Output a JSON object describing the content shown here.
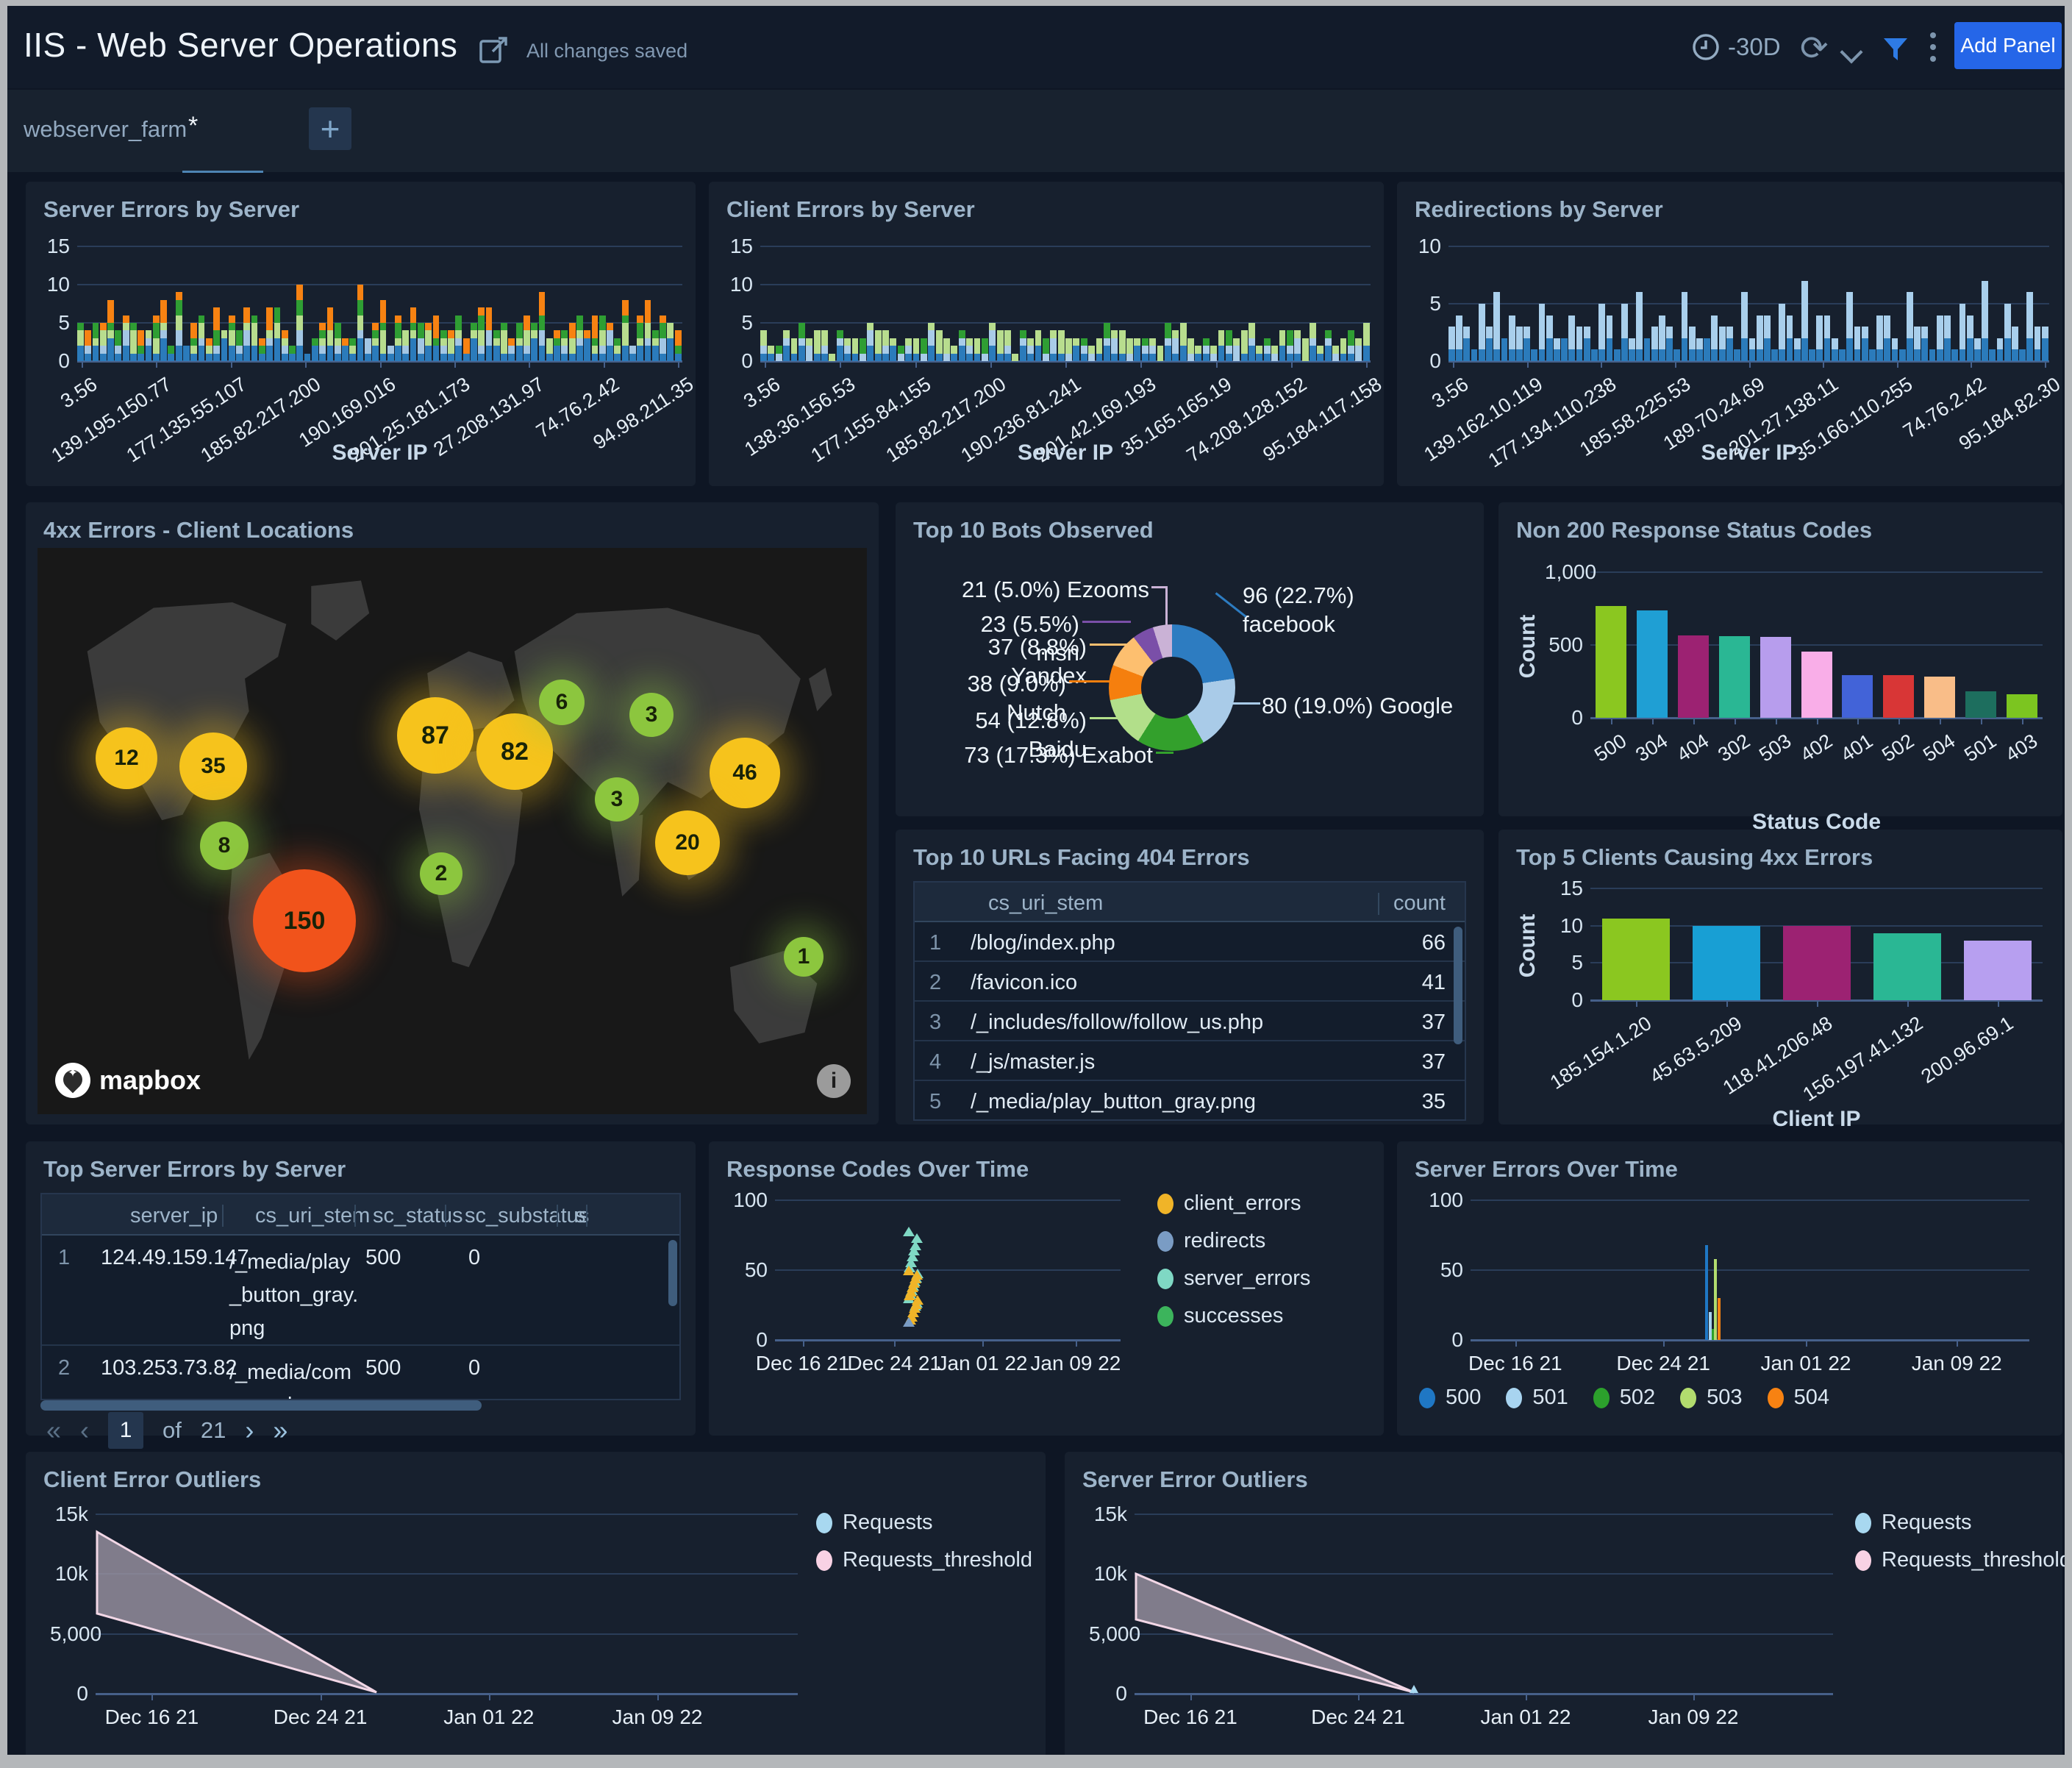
{
  "header": {
    "title": "IIS - Web Server Operations",
    "saved_status": "All changes saved",
    "time_range": "-30D",
    "add_panel_label": "Add Panel"
  },
  "filter": {
    "label": "webserver_farm",
    "value": "*",
    "add_button": "+"
  },
  "row1": [
    {
      "title": "Server Errors by Server",
      "xlabel": "Server IP",
      "ymax": 15,
      "yticks": [
        15,
        10,
        5,
        0
      ],
      "ytick_labels": [
        "15",
        "10",
        "5",
        "0"
      ],
      "xticks": [
        "3.56",
        "139.195.150.77",
        "177.135.55.107",
        "185.82.217.200",
        "190.169.016",
        "201.25.181.173",
        "27.208.131.97",
        "74.76.2.42",
        "94.98.211.35"
      ],
      "colors": [
        "#2b7bbb",
        "#a3c6e4",
        "#b8dd8e",
        "#2f9e33",
        "#f78212"
      ],
      "stacks": [
        "21213121121312212113212212311212121213121121312211213122112132121123112121222131",
        "01010120010102001010012001010200101001200101020010100120010102001010012001010200",
        "20121013012102012101201301210200121012013012102012101201301210201210120130121020",
        "10201201102012011020120110201201102012011020120110201201102012011020120110201201",
        "02013010201301020130102013010200130102013010201301020130010203010201301020130102"
      ]
    },
    {
      "title": "Client Errors by Server",
      "xlabel": "Server IP",
      "ymax": 15,
      "yticks": [
        15,
        10,
        5,
        0
      ],
      "ytick_labels": [
        "15",
        "10",
        "5",
        "0"
      ],
      "xticks": [
        "3.56",
        "138.36.156.53",
        "177.155.84.155",
        "185.82.217.200",
        "190.236.81.241",
        "201.42.169.193",
        "35.165.165.19",
        "74.208.128.152",
        "95.184.117.158"
      ],
      "colors": [
        "#2b7bbb",
        "#a9cce8",
        "#b8dd8e",
        "#2f9e33"
      ],
      "stacks": [
        "11021201102110211201102101211021102120110210121102110212011021012110211021201102",
        "10110120101101201011012010110120101101201011012010110120101101201011012010110120",
        "21012013210120132101201321012013210120132101201321012013210120132101201321012013",
        "00100200001002000010020000100200001002000010020000100200001002000010020000100200"
      ]
    },
    {
      "title": "Redirections by Server",
      "xlabel": "Server IP",
      "ymax": 10,
      "yticks": [
        10,
        5,
        0
      ],
      "ytick_labels": [
        "10",
        "5",
        "0"
      ],
      "xticks": [
        "3.56",
        "139.162.10.119",
        "177.134.110.238",
        "185.58.225.53",
        "189.70.24.69",
        "201.27.138.11",
        "35.166.110.255",
        "74.76.2.42",
        "95.184.82.30"
      ],
      "colors": [
        "#2b7bbb",
        "#a9cfec"
      ],
      "stacks": [
        "11211212112112121121121211211212112112121121121211211212112112121121121211211212",
        "23104150321042103210420315023104210321041320421503210421032104210320421501320421"
      ]
    }
  ],
  "map": {
    "title": "4xx Errors - Client Locations",
    "attribution": "mapbox",
    "info_icon": "i",
    "bubbles": [
      {
        "value": "12",
        "x": 0.107,
        "y": 0.371,
        "color": "#f6c31c",
        "size": 84
      },
      {
        "value": "35",
        "x": 0.212,
        "y": 0.386,
        "color": "#f6c31c",
        "size": 92
      },
      {
        "value": "8",
        "x": 0.225,
        "y": 0.526,
        "color": "#8cc63e",
        "size": 66
      },
      {
        "value": "150",
        "x": 0.322,
        "y": 0.658,
        "color": "#f1531b",
        "size": 140
      },
      {
        "value": "87",
        "x": 0.48,
        "y": 0.331,
        "color": "#f6c31c",
        "size": 104
      },
      {
        "value": "82",
        "x": 0.575,
        "y": 0.36,
        "color": "#f6c31c",
        "size": 104
      },
      {
        "value": "6",
        "x": 0.632,
        "y": 0.273,
        "color": "#8cc63e",
        "size": 62
      },
      {
        "value": "3",
        "x": 0.74,
        "y": 0.295,
        "color": "#8cc63e",
        "size": 60
      },
      {
        "value": "3",
        "x": 0.699,
        "y": 0.444,
        "color": "#8cc63e",
        "size": 60
      },
      {
        "value": "2",
        "x": 0.487,
        "y": 0.575,
        "color": "#8cc63e",
        "size": 58
      },
      {
        "value": "46",
        "x": 0.853,
        "y": 0.397,
        "color": "#f6c31c",
        "size": 96
      },
      {
        "value": "20",
        "x": 0.784,
        "y": 0.521,
        "color": "#f6c31c",
        "size": 88
      },
      {
        "value": "1",
        "x": 0.924,
        "y": 0.722,
        "color": "#8cc63e",
        "size": 54
      }
    ]
  },
  "bots": {
    "title": "Top 10 Bots Observed",
    "slices": [
      {
        "name": "facebook",
        "pct": 22.7,
        "count": 96,
        "color": "#2d7cc1"
      },
      {
        "name": "google",
        "pct": 19.0,
        "count": 80,
        "color": "#a9cbe8"
      },
      {
        "name": "exabot",
        "pct": 17.3,
        "count": 73,
        "color": "#33a02c"
      },
      {
        "name": "baidu",
        "pct": 12.8,
        "count": 54,
        "color": "#b2df8a"
      },
      {
        "name": "nutch",
        "pct": 9.0,
        "count": 38,
        "color": "#f57f0e"
      },
      {
        "name": "yandex",
        "pct": 8.8,
        "count": 37,
        "color": "#fdbf6f"
      },
      {
        "name": "msn",
        "pct": 5.5,
        "count": 23,
        "color": "#7a4fa8"
      },
      {
        "name": "ezooms",
        "pct": 5.0,
        "count": 21,
        "color": "#cab2d6"
      }
    ],
    "labels": [
      {
        "text": "21 (5.0%) Ezooms"
      },
      {
        "text": "23 (5.5%) msn"
      },
      {
        "text": "37 (8.8%) Yandex"
      },
      {
        "text": "38 (9.0%) Nutch"
      },
      {
        "text": "54 (12.8%) Baidu"
      },
      {
        "text": "73 (17.3%) Exabot"
      },
      {
        "text": "96 (22.7%) facebook"
      },
      {
        "text": "80 (19.0%) Google"
      }
    ]
  },
  "non200": {
    "title": "Non 200 Response Status Codes",
    "ylabel": "Count",
    "xlabel": "Status Code",
    "ymax": 1000,
    "yticks": [
      1000,
      500,
      0
    ],
    "ytick_labels": [
      "1,000",
      "500",
      "0"
    ],
    "categories": [
      "500",
      "304",
      "404",
      "302",
      "503",
      "402",
      "401",
      "502",
      "504",
      "501",
      "403"
    ],
    "values": [
      770,
      740,
      565,
      560,
      555,
      455,
      295,
      295,
      285,
      180,
      160
    ],
    "colors": [
      "#8bc720",
      "#1f9fd4",
      "#9c2272",
      "#2ab794",
      "#b79ded",
      "#f9aee8",
      "#4263d8",
      "#d83636",
      "#f9bd88",
      "#1d6e5e",
      "#7cc520"
    ]
  },
  "url404": {
    "title": "Top 10 URLs Facing 404 Errors",
    "columns": [
      "cs_uri_stem",
      "count"
    ],
    "rows": [
      {
        "n": "1",
        "uri": "/blog/index.php",
        "count": "66"
      },
      {
        "n": "2",
        "uri": "/favicon.ico",
        "count": "41"
      },
      {
        "n": "3",
        "uri": "/_includes/follow/follow_us.php",
        "count": "37"
      },
      {
        "n": "4",
        "uri": "/_js/master.js",
        "count": "37"
      },
      {
        "n": "5",
        "uri": "/_media/play_button_gray.png",
        "count": "35"
      }
    ]
  },
  "top5": {
    "title": "Top 5 Clients Causing 4xx Errors",
    "ylabel": "Count",
    "xlabel": "Client IP",
    "ymax": 15,
    "yticks": [
      15,
      10,
      5,
      0
    ],
    "ytick_labels": [
      "15",
      "10",
      "5",
      "0"
    ],
    "categories": [
      "185.154.1.20",
      "45.63.5.209",
      "118.41.206.48",
      "156.197.41.132",
      "200.96.69.1"
    ],
    "values": [
      11,
      10,
      10,
      9,
      8
    ],
    "colors": [
      "#8bc720",
      "#189fd4",
      "#9c2272",
      "#2ab794",
      "#b79ff0"
    ]
  },
  "tses": {
    "title": "Top Server Errors by Server",
    "columns": [
      "server_ip",
      "cs_uri_stem",
      "sc_status",
      "sc_substatus",
      "s"
    ],
    "rows": [
      {
        "n": "1",
        "server_ip": "124.49.159.147",
        "uri_lines": [
          "/_media/play",
          "_button_gray.",
          "png"
        ],
        "status": "500",
        "substatus": "0"
      },
      {
        "n": "2",
        "server_ip": "103.253.73.82",
        "uri_lines": [
          "/_media/com",
          "pany_logo.pn"
        ],
        "status": "500",
        "substatus": "0"
      }
    ],
    "pagination": {
      "first": "«",
      "prev": "‹",
      "page": "1",
      "of_label": "of",
      "total": "21",
      "next": "›",
      "last": "»"
    }
  },
  "resp": {
    "title": "Response Codes Over Time",
    "ymax": 100,
    "yticks": [
      100,
      50,
      0
    ],
    "ytick_labels": [
      "100",
      "50",
      "0"
    ],
    "xticks": [
      "Dec 16 21",
      "Dec 24 21",
      "Jan 01 22",
      "Jan 09 22"
    ],
    "legend": [
      {
        "label": "client_errors",
        "color": "#f0b428"
      },
      {
        "label": "redirects",
        "color": "#7a9cc4"
      },
      {
        "label": "server_errors",
        "color": "#7fd8c4"
      },
      {
        "label": "successes",
        "color": "#3cb45c"
      }
    ],
    "cluster_x": 0.4,
    "series": {
      "server_errors": [
        78,
        73,
        68,
        64,
        60,
        56,
        52,
        48,
        45,
        42,
        39,
        36,
        33,
        30,
        27,
        25
      ],
      "client_errors": [
        50,
        47,
        44,
        41,
        38,
        35,
        32,
        29,
        26,
        23,
        20,
        17,
        15
      ],
      "redirects": [
        13
      ],
      "successes": []
    }
  },
  "seot": {
    "title": "Server Errors Over Time",
    "ymax": 100,
    "yticks": [
      100,
      50,
      0
    ],
    "ytick_labels": [
      "100",
      "50",
      "0"
    ],
    "xticks": [
      "Dec 16 21",
      "Dec 24 21",
      "Jan 01 22",
      "Jan 09 22"
    ],
    "legend": [
      {
        "label": "500",
        "color": "#1f77c4"
      },
      {
        "label": "501",
        "color": "#a8d4f0"
      },
      {
        "label": "502",
        "color": "#2ca02c"
      },
      {
        "label": "503",
        "color": "#b2dc6e"
      },
      {
        "label": "504",
        "color": "#f78212"
      }
    ],
    "spike_x": 0.42,
    "spike_bars": [
      {
        "label": "500",
        "v": 68,
        "color": "#1f77c4",
        "dx": 0
      },
      {
        "label": "501",
        "v": 20,
        "color": "#a8d4f0",
        "dx": 5
      },
      {
        "label": "502",
        "v": 8,
        "color": "#2ca02c",
        "dx": 9
      },
      {
        "label": "503",
        "v": 58,
        "color": "#b2dc6e",
        "dx": 12
      },
      {
        "label": "504",
        "v": 30,
        "color": "#f78212",
        "dx": 17
      }
    ]
  },
  "outliers": [
    {
      "title": "Client Error Outliers",
      "ymax": 15000,
      "yticks": [
        15000,
        10000,
        5000,
        0
      ],
      "ytick_labels": [
        "15k",
        "10k",
        "5,000",
        "0"
      ],
      "xticks": [
        "Dec 16 21",
        "Dec 24 21",
        "Jan 01 22",
        "Jan 09 22"
      ],
      "legend": [
        {
          "label": "Requests",
          "color": "#a8d8f0"
        },
        {
          "label": "Requests_threshold",
          "color": "#f8d2e4"
        }
      ],
      "band": {
        "upper": 13500,
        "lower": 6700,
        "converge_x": 0.4
      },
      "marker": false
    },
    {
      "title": "Server Error Outliers",
      "ymax": 15000,
      "yticks": [
        15000,
        10000,
        5000,
        0
      ],
      "ytick_labels": [
        "15k",
        "10k",
        "5,000",
        "0"
      ],
      "xticks": [
        "Dec 16 21",
        "Dec 24 21",
        "Jan 01 22",
        "Jan 09 22"
      ],
      "legend": [
        {
          "label": "Requests",
          "color": "#a8d8f0"
        },
        {
          "label": "Requests_threshold",
          "color": "#f8d2e4"
        }
      ],
      "band": {
        "upper": 10000,
        "lower": 6200,
        "converge_x": 0.4
      },
      "marker": true
    }
  ]
}
